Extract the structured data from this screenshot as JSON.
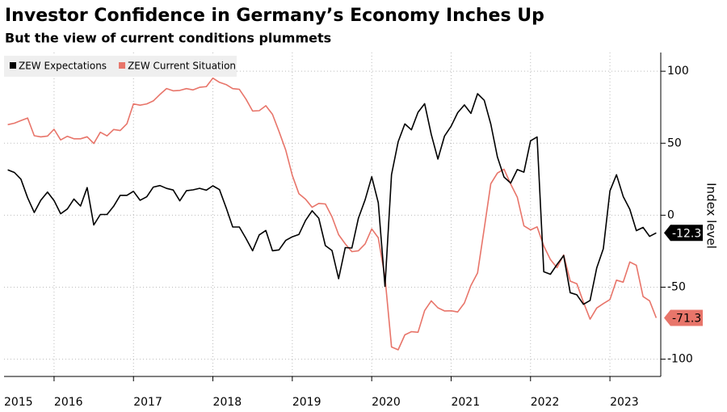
{
  "chart_data": {
    "type": "line",
    "title": "Investor Confidence in Germany’s Economy Inches Up",
    "subtitle": "But the view of current conditions plummets",
    "y_label": "Index level",
    "x": [
      2015.417,
      2015.5,
      2015.583,
      2015.667,
      2015.75,
      2015.833,
      2015.917,
      2016,
      2016.083,
      2016.167,
      2016.25,
      2016.333,
      2016.417,
      2016.5,
      2016.583,
      2016.667,
      2016.75,
      2016.833,
      2016.917,
      2017,
      2017.083,
      2017.167,
      2017.25,
      2017.333,
      2017.417,
      2017.5,
      2017.583,
      2017.667,
      2017.75,
      2017.833,
      2017.917,
      2018,
      2018.083,
      2018.167,
      2018.25,
      2018.333,
      2018.417,
      2018.5,
      2018.583,
      2018.667,
      2018.75,
      2018.833,
      2018.917,
      2019,
      2019.083,
      2019.167,
      2019.25,
      2019.333,
      2019.417,
      2019.5,
      2019.583,
      2019.667,
      2019.75,
      2019.833,
      2019.917,
      2020,
      2020.083,
      2020.167,
      2020.25,
      2020.333,
      2020.417,
      2020.5,
      2020.583,
      2020.667,
      2020.75,
      2020.833,
      2020.917,
      2021,
      2021.083,
      2021.167,
      2021.25,
      2021.333,
      2021.417,
      2021.5,
      2021.583,
      2021.667,
      2021.75,
      2021.833,
      2021.917,
      2022,
      2022.083,
      2022.167,
      2022.25,
      2022.333,
      2022.417,
      2022.5,
      2022.583,
      2022.667,
      2022.75,
      2022.833,
      2022.917,
      2023,
      2023.083,
      2023.167,
      2023.25,
      2023.333,
      2023.417,
      2023.5,
      2023.583
    ],
    "series": [
      {
        "name": "ZEW Expectations",
        "color": "#000000",
        "values": [
          31.5,
          29.7,
          25.0,
          12.1,
          1.9,
          10.4,
          16.1,
          10.2,
          1.0,
          4.3,
          11.2,
          6.4,
          19.2,
          -6.8,
          0.5,
          0.5,
          6.2,
          13.8,
          13.8,
          16.6,
          10.4,
          12.8,
          19.5,
          20.6,
          18.6,
          17.5,
          10.0,
          17.0,
          17.6,
          18.7,
          17.4,
          20.4,
          17.8,
          5.1,
          -8.2,
          -8.2,
          -16.1,
          -24.7,
          -13.7,
          -10.6,
          -24.7,
          -24.1,
          -17.5,
          -15.0,
          -13.4,
          -3.6,
          3.1,
          -2.1,
          -21.1,
          -24.5,
          -44.1,
          -22.5,
          -22.8,
          -2.1,
          10.7,
          26.7,
          8.7,
          -49.5,
          28.2,
          51.0,
          63.4,
          59.3,
          71.5,
          77.4,
          56.1,
          39.0,
          55.0,
          61.8,
          71.2,
          76.6,
          70.7,
          84.4,
          79.8,
          63.3,
          40.4,
          26.5,
          22.3,
          31.7,
          29.9,
          51.7,
          54.3,
          -39.3,
          -41.0,
          -34.3,
          -28.0,
          -53.8,
          -55.3,
          -61.9,
          -59.2,
          -36.7,
          -23.3,
          16.9,
          28.1,
          13.0,
          4.1,
          -10.7,
          -8.5,
          -14.7,
          -12.3
        ]
      },
      {
        "name": "ZEW Current Situation",
        "color": "#e8756a",
        "values": [
          62.9,
          63.9,
          65.7,
          67.5,
          55.2,
          54.4,
          55.0,
          59.7,
          52.3,
          54.8,
          53.1,
          53.1,
          54.5,
          49.8,
          57.6,
          55.1,
          59.5,
          58.8,
          63.5,
          77.3,
          76.4,
          77.3,
          79.4,
          83.9,
          88.0,
          86.4,
          86.7,
          87.9,
          87.0,
          88.8,
          89.3,
          95.2,
          92.3,
          90.7,
          87.9,
          87.4,
          80.6,
          72.4,
          72.6,
          76.0,
          70.1,
          58.2,
          45.3,
          27.6,
          15.0,
          11.1,
          5.5,
          8.2,
          7.8,
          -1.1,
          -13.5,
          -19.9,
          -25.3,
          -24.7,
          -19.9,
          -9.5,
          -15.7,
          -43.1,
          -91.5,
          -93.5,
          -83.1,
          -80.9,
          -81.3,
          -66.2,
          -59.5,
          -64.3,
          -66.5,
          -66.4,
          -67.2,
          -61.0,
          -48.8,
          -40.1,
          -9.1,
          21.9,
          29.3,
          31.9,
          21.6,
          12.5,
          -7.4,
          -10.2,
          -8.1,
          -21.4,
          -30.8,
          -36.5,
          -27.6,
          -45.8,
          -47.6,
          -60.5,
          -72.2,
          -64.5,
          -61.4,
          -58.6,
          -45.1,
          -46.5,
          -32.5,
          -34.8,
          -56.5,
          -59.5,
          -71.3
        ]
      }
    ],
    "xlim": [
      2015.37,
      2023.64
    ],
    "xticks": [
      2015,
      2016,
      2017,
      2018,
      2019,
      2020,
      2021,
      2022,
      2023
    ],
    "ylim": [
      -112,
      113
    ],
    "yticks": [
      100,
      50,
      0,
      -50,
      -100
    ],
    "grid": true,
    "legend": "top-left"
  }
}
